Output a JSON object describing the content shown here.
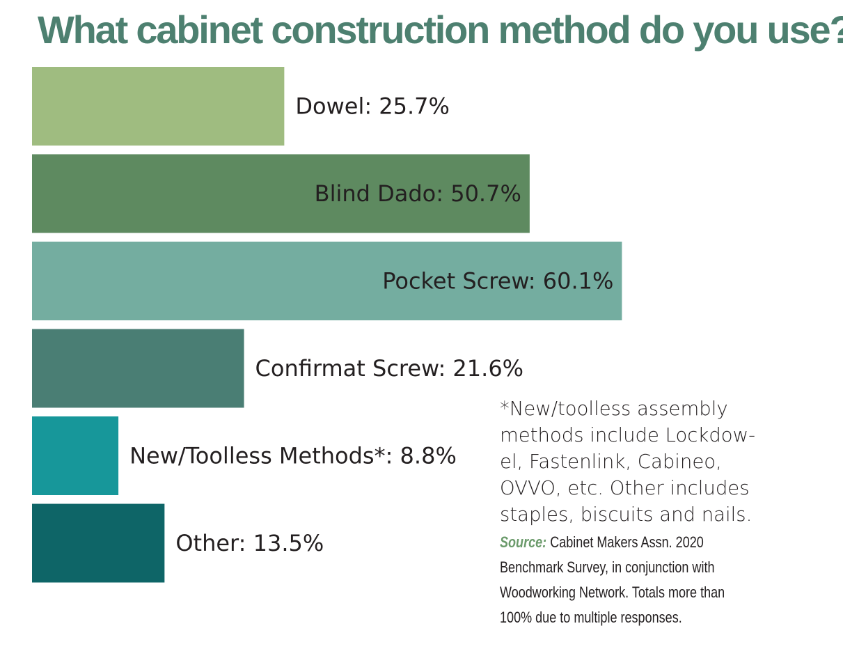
{
  "chart_data": {
    "type": "bar",
    "orientation": "horizontal",
    "title": "What cabinet construction method do you use?",
    "categories": [
      "Dowel",
      "Blind Dado",
      "Pocket Screw",
      "Confirmat Screw",
      "New/Toolless Methods*",
      "Other"
    ],
    "values": [
      25.7,
      50.7,
      60.1,
      21.6,
      8.8,
      13.5
    ],
    "data_labels": [
      "Dowel: 25.7%",
      "Blind Dado: 50.7%",
      "Pocket Screw: 60.1%",
      "Confirmat Screw: 21.6%",
      "New/Toolless Methods*: 8.8%",
      "Other: 13.5%"
    ],
    "colors": [
      "#9fbc80",
      "#5e8a60",
      "#74ada0",
      "#4a7e74",
      "#17979a",
      "#0e6567"
    ],
    "xlim": [
      0,
      100
    ],
    "grid": false,
    "legend": "none"
  },
  "footnote": "*New/toolless assembly methods include Lockdow-el, Fastenlink, Cabineo, OVVO, etc. Other includes staples, biscuits and nails.",
  "source": {
    "label": "Source:",
    "text": "Cabinet Makers Assn. 2020 Benchmark Survey, in conjunction with Woodworking Network. Totals more than 100% due to multiple responses."
  }
}
